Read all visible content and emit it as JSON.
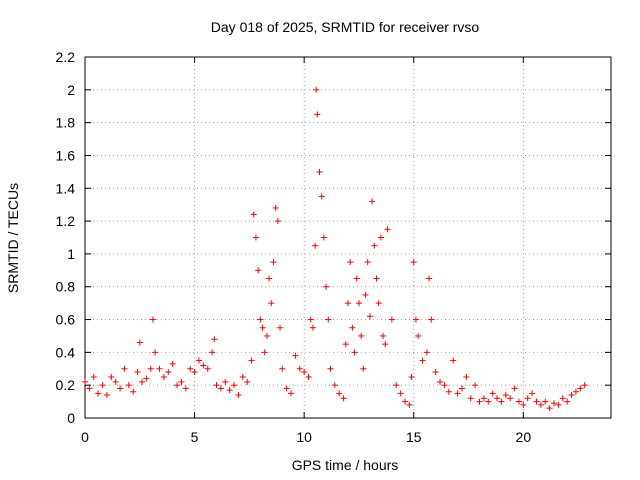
{
  "chart_data": {
    "type": "scatter",
    "title": "Day 018 of 2025, SRMTID for receiver rvso",
    "xlabel": "GPS time / hours",
    "ylabel": "SRMTID / TECUs",
    "xlim": [
      0,
      24
    ],
    "ylim": [
      0,
      2.2
    ],
    "x_ticks": [
      0,
      5,
      10,
      15,
      20
    ],
    "x_tick_labels": [
      "0",
      "5",
      "10",
      "15",
      "20"
    ],
    "y_ticks": [
      0,
      0.2,
      0.4,
      0.6,
      0.8,
      1.0,
      1.2,
      1.4,
      1.6,
      1.8,
      2.0,
      2.2
    ],
    "y_tick_labels": [
      "0",
      "0.2",
      "0.4",
      "0.6",
      "0.8",
      "1",
      "1.2",
      "1.4",
      "1.6",
      "1.8",
      "2",
      "2.2"
    ],
    "grid": true,
    "marker": "+",
    "series": [
      {
        "name": "SRMTID",
        "color": "#ff0000",
        "x": [
          0.0,
          0.2,
          0.4,
          0.6,
          0.8,
          1.0,
          1.2,
          1.4,
          1.6,
          1.8,
          2.0,
          2.2,
          2.4,
          2.5,
          2.6,
          2.8,
          3.0,
          3.1,
          3.2,
          3.4,
          3.6,
          3.8,
          4.0,
          4.2,
          4.4,
          4.6,
          4.8,
          5.0,
          5.2,
          5.4,
          5.6,
          5.8,
          5.9,
          6.0,
          6.2,
          6.4,
          6.6,
          6.8,
          7.0,
          7.2,
          7.4,
          7.6,
          7.7,
          7.8,
          7.9,
          8.0,
          8.1,
          8.2,
          8.3,
          8.4,
          8.5,
          8.6,
          8.7,
          8.8,
          8.9,
          9.0,
          9.2,
          9.4,
          9.6,
          9.8,
          10.0,
          10.2,
          10.3,
          10.4,
          10.5,
          10.55,
          10.6,
          10.7,
          10.8,
          10.9,
          11.0,
          11.1,
          11.2,
          11.4,
          11.6,
          11.8,
          11.9,
          12.0,
          12.1,
          12.2,
          12.3,
          12.4,
          12.5,
          12.6,
          12.7,
          12.8,
          12.9,
          13.0,
          13.1,
          13.2,
          13.3,
          13.4,
          13.5,
          13.6,
          13.7,
          13.8,
          14.0,
          14.2,
          14.4,
          14.6,
          14.8,
          14.9,
          15.0,
          15.1,
          15.2,
          15.4,
          15.6,
          15.7,
          15.8,
          16.0,
          16.2,
          16.4,
          16.6,
          16.8,
          17.0,
          17.2,
          17.4,
          17.6,
          17.8,
          18.0,
          18.2,
          18.4,
          18.6,
          18.8,
          19.0,
          19.2,
          19.4,
          19.6,
          19.8,
          20.0,
          20.2,
          20.4,
          20.6,
          20.8,
          21.0,
          21.2,
          21.4,
          21.6,
          21.8,
          22.0,
          22.2,
          22.4,
          22.6,
          22.8
        ],
        "y": [
          0.22,
          0.18,
          0.25,
          0.15,
          0.2,
          0.14,
          0.25,
          0.22,
          0.18,
          0.3,
          0.2,
          0.16,
          0.28,
          0.46,
          0.22,
          0.24,
          0.3,
          0.6,
          0.4,
          0.3,
          0.25,
          0.28,
          0.33,
          0.2,
          0.22,
          0.18,
          0.3,
          0.28,
          0.35,
          0.32,
          0.3,
          0.4,
          0.48,
          0.2,
          0.18,
          0.22,
          0.17,
          0.2,
          0.14,
          0.25,
          0.22,
          0.35,
          1.24,
          1.1,
          0.9,
          0.6,
          0.55,
          0.4,
          0.5,
          0.85,
          0.7,
          0.95,
          1.28,
          1.2,
          0.55,
          0.3,
          0.18,
          0.15,
          0.38,
          0.3,
          0.28,
          0.25,
          0.6,
          0.55,
          1.05,
          2.0,
          1.85,
          1.5,
          1.35,
          1.1,
          0.8,
          0.6,
          0.3,
          0.2,
          0.15,
          0.12,
          0.45,
          0.7,
          0.95,
          0.55,
          0.4,
          0.85,
          0.7,
          0.5,
          0.3,
          0.75,
          0.95,
          0.62,
          1.32,
          1.05,
          0.85,
          0.7,
          1.1,
          0.5,
          0.45,
          1.15,
          0.6,
          0.2,
          0.15,
          0.1,
          0.08,
          0.25,
          0.95,
          0.6,
          0.5,
          0.35,
          0.4,
          0.85,
          0.6,
          0.28,
          0.22,
          0.2,
          0.16,
          0.35,
          0.15,
          0.18,
          0.25,
          0.12,
          0.2,
          0.1,
          0.12,
          0.1,
          0.15,
          0.12,
          0.1,
          0.14,
          0.12,
          0.18,
          0.1,
          0.08,
          0.12,
          0.15,
          0.1,
          0.08,
          0.1,
          0.06,
          0.09,
          0.08,
          0.12,
          0.1,
          0.14,
          0.16,
          0.18,
          0.2
        ]
      }
    ]
  }
}
